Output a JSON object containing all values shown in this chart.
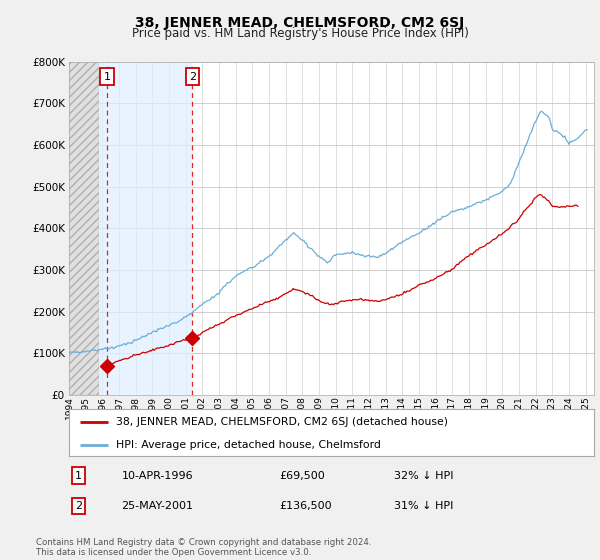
{
  "title": "38, JENNER MEAD, CHELMSFORD, CM2 6SJ",
  "subtitle": "Price paid vs. HM Land Registry's House Price Index (HPI)",
  "title_fontsize": 10,
  "subtitle_fontsize": 8.5,
  "ylim": [
    0,
    800000
  ],
  "yticks": [
    0,
    100000,
    200000,
    300000,
    400000,
    500000,
    600000,
    700000,
    800000
  ],
  "ytick_labels": [
    "£0",
    "£100K",
    "£200K",
    "£300K",
    "£400K",
    "£500K",
    "£600K",
    "£700K",
    "£800K"
  ],
  "bg_color": "#f0f0f0",
  "plot_bg_color": "#ffffff",
  "grid_color": "#c8c8c8",
  "purchase1_year": 1996.28,
  "purchase1_price": 69500,
  "purchase2_year": 2001.4,
  "purchase2_price": 136500,
  "legend_line1": "38, JENNER MEAD, CHELMSFORD, CM2 6SJ (detached house)",
  "legend_line2": "HPI: Average price, detached house, Chelmsford",
  "annot1_date": "10-APR-1996",
  "annot1_price": "£69,500",
  "annot1_hpi": "32% ↓ HPI",
  "annot2_date": "25-MAY-2001",
  "annot2_price": "£136,500",
  "annot2_hpi": "31% ↓ HPI",
  "footer": "Contains HM Land Registry data © Crown copyright and database right 2024.\nThis data is licensed under the Open Government Licence v3.0.",
  "red_line_color": "#cc0000",
  "blue_line_color": "#6baed6",
  "xmin": 1994.0,
  "xmax": 2025.5,
  "hatch_region_end": 1995.8,
  "blue_fill_start": 1995.8,
  "blue_fill_end": 2001.4
}
